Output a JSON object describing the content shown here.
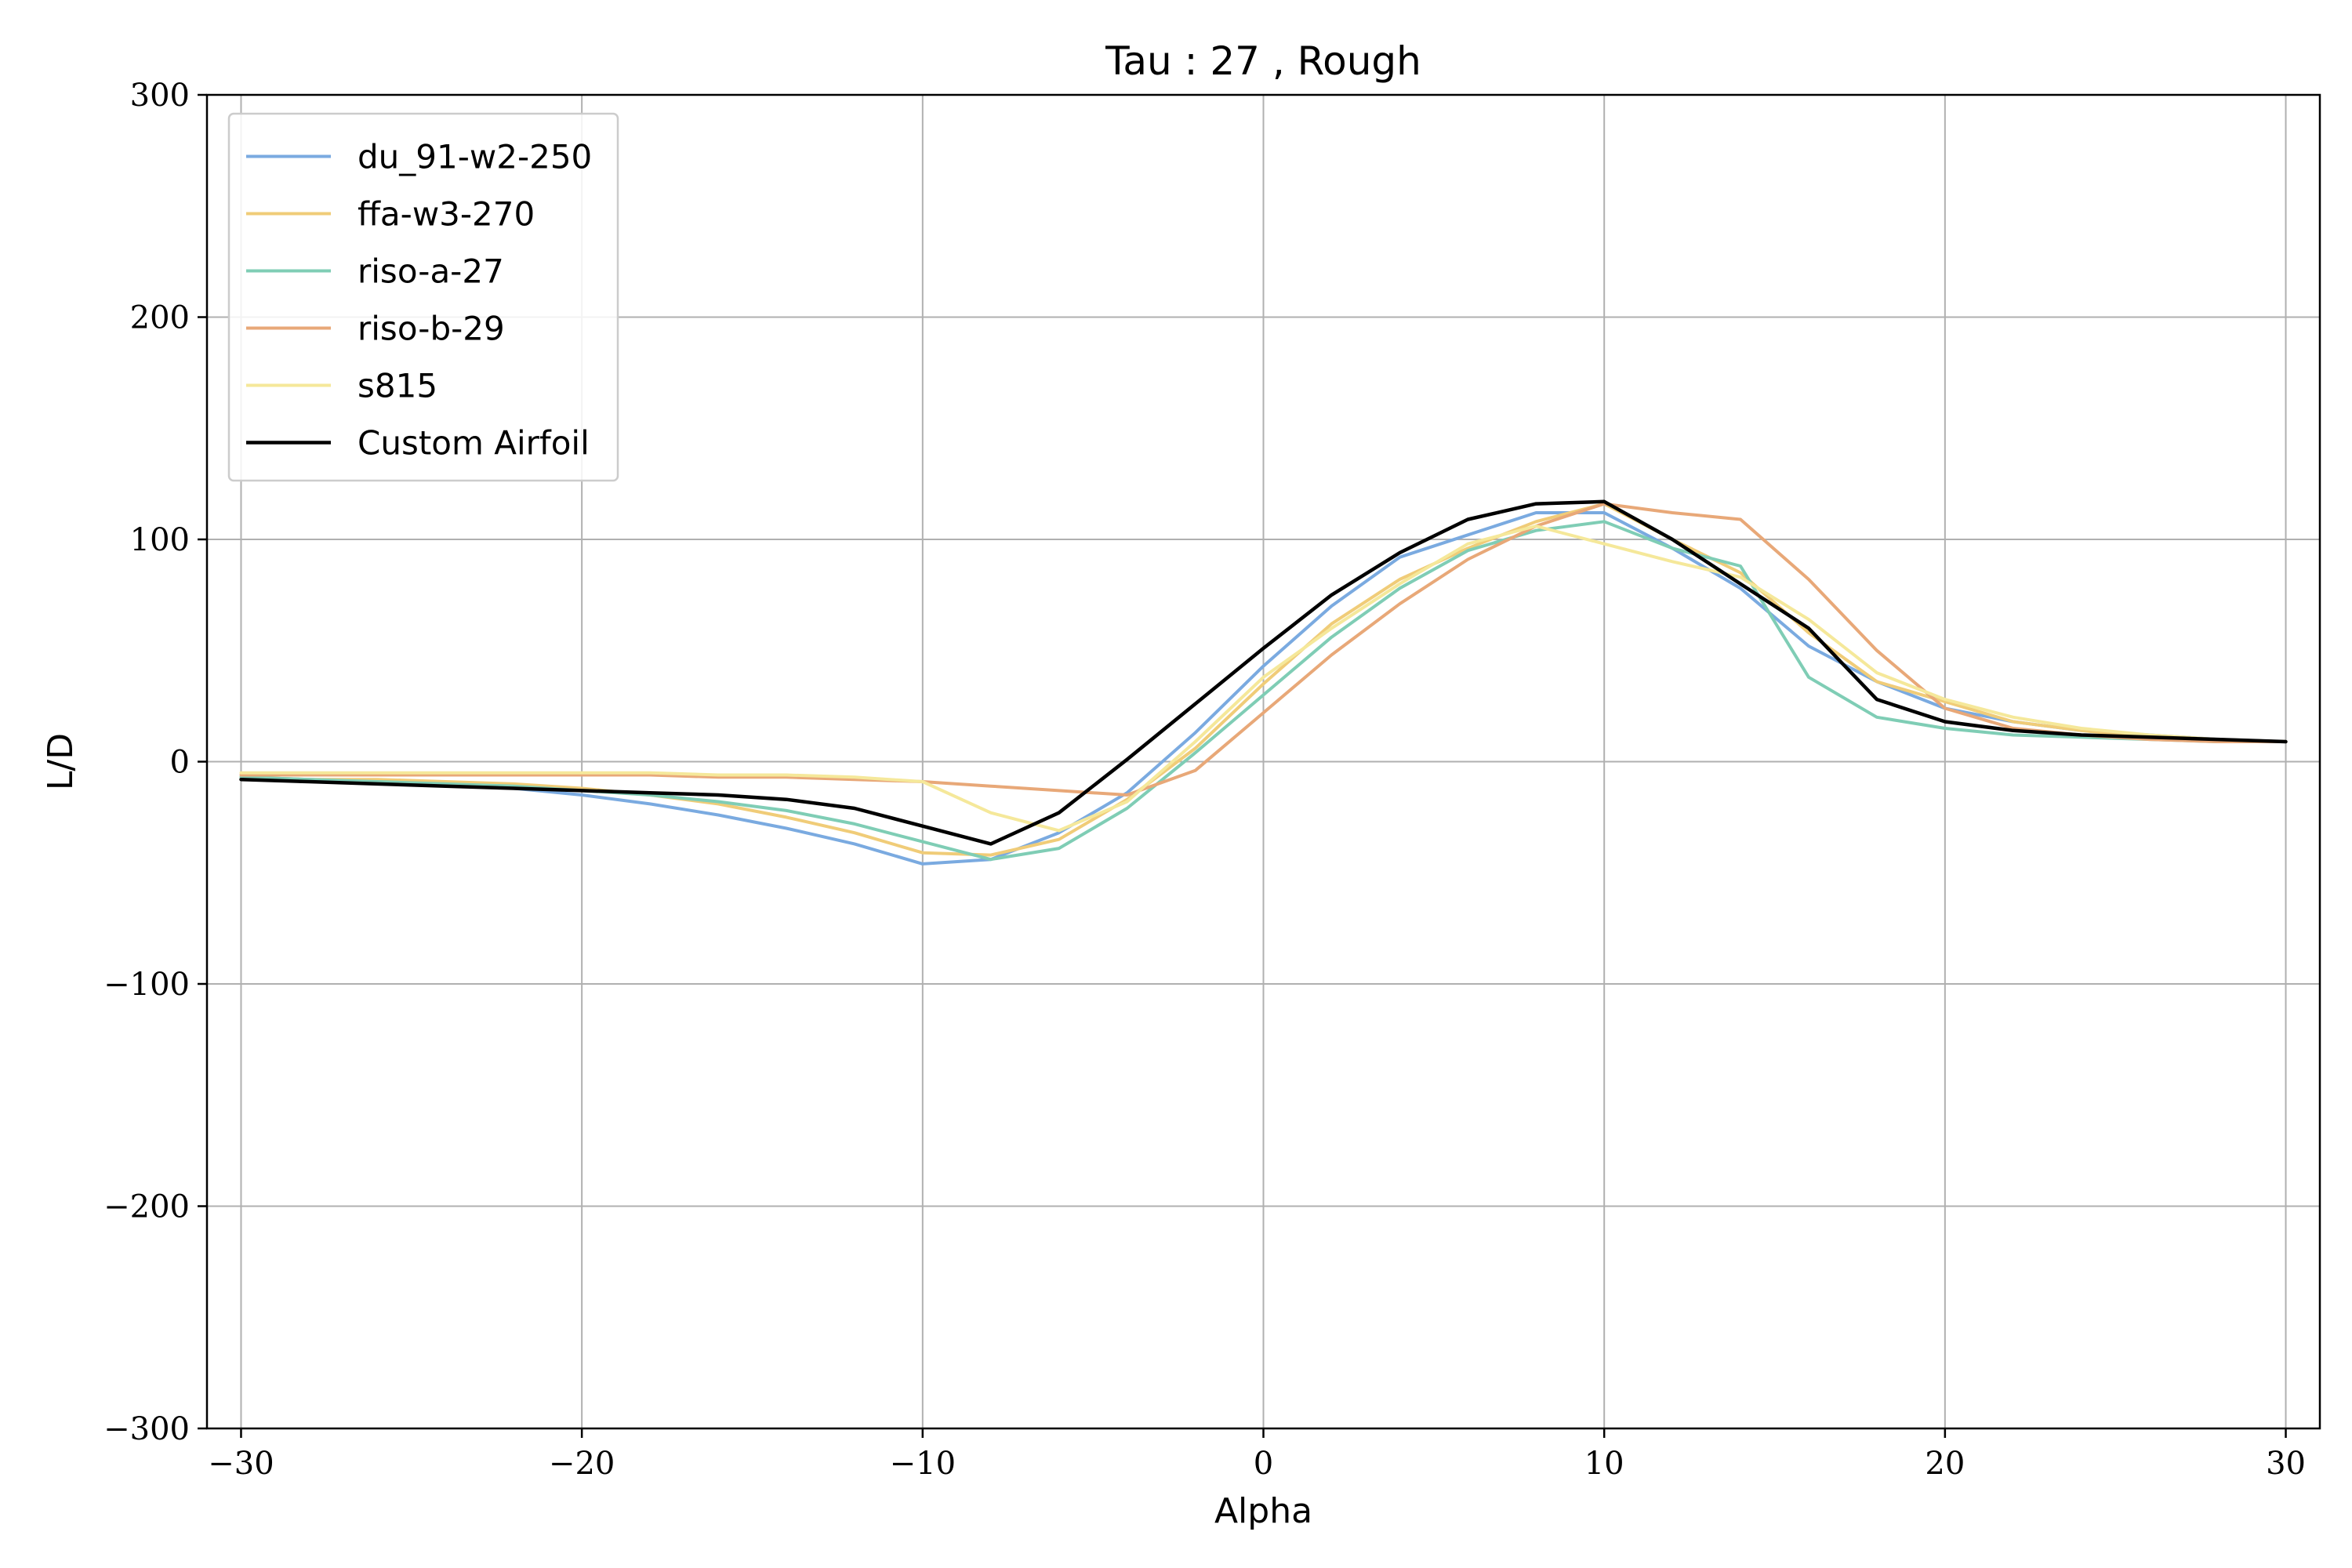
{
  "chart_data": {
    "type": "line",
    "title": "Tau : 27 , Rough",
    "xlabel": "Alpha",
    "ylabel": "L/D",
    "xlim": [
      -31,
      31
    ],
    "ylim": [
      -300,
      300
    ],
    "xticks": [
      -30,
      -20,
      -10,
      0,
      10,
      20,
      30
    ],
    "yticks": [
      -300,
      -200,
      -100,
      0,
      100,
      200,
      300
    ],
    "xtick_labels": [
      "−30",
      "−20",
      "−10",
      "0",
      "10",
      "20",
      "30"
    ],
    "ytick_labels": [
      "−300",
      "−200",
      "−100",
      "0",
      "100",
      "200",
      "300"
    ],
    "grid": true,
    "legend_position": "top-left",
    "x": [
      -30,
      -28,
      -26,
      -24,
      -22,
      -20,
      -18,
      -16,
      -14,
      -12,
      -10,
      -8,
      -6,
      -4,
      -2,
      0,
      2,
      4,
      6,
      8,
      10,
      12,
      14,
      16,
      18,
      20,
      22,
      24,
      26,
      28,
      30
    ],
    "series": [
      {
        "name": "du_91-w2-250",
        "color": "#7aaae0",
        "width": 4,
        "values": [
          -8,
          -8,
          -9,
          -10,
          -12,
          -15,
          -19,
          -24,
          -30,
          -37,
          -46,
          -44,
          -32,
          -14,
          13,
          43,
          70,
          92,
          102,
          112,
          112,
          96,
          78,
          52,
          36,
          24,
          18,
          14,
          12,
          10,
          9
        ]
      },
      {
        "name": "ffa-w3-270",
        "color": "#f0cc78",
        "width": 4,
        "values": [
          -7,
          -8,
          -8,
          -9,
          -10,
          -12,
          -15,
          -19,
          -25,
          -32,
          -41,
          -42,
          -35,
          -17,
          6,
          35,
          62,
          82,
          96,
          108,
          116,
          100,
          85,
          58,
          36,
          27,
          18,
          14,
          11,
          10,
          9
        ]
      },
      {
        "name": "riso-a-27",
        "color": "#7fcdb5",
        "width": 4,
        "values": [
          -7,
          -8,
          -9,
          -10,
          -11,
          -13,
          -15,
          -18,
          -22,
          -28,
          -36,
          -44,
          -39,
          -21,
          4,
          30,
          56,
          78,
          95,
          104,
          108,
          96,
          88,
          38,
          20,
          15,
          12,
          11,
          10,
          9,
          9
        ]
      },
      {
        "name": "riso-b-29",
        "color": "#e8a878",
        "width": 4,
        "values": [
          -6,
          -6,
          -6,
          -6,
          -6,
          -6,
          -6,
          -7,
          -7,
          -8,
          -9,
          -11,
          -13,
          -15,
          -4,
          22,
          48,
          71,
          91,
          106,
          116,
          112,
          109,
          82,
          50,
          24,
          15,
          12,
          10,
          9,
          9
        ]
      },
      {
        "name": "s815",
        "color": "#f5e89a",
        "width": 4,
        "values": [
          -5,
          -5,
          -5,
          -5,
          -5,
          -5,
          -5,
          -6,
          -6,
          -7,
          -9,
          -23,
          -31,
          -18,
          9,
          38,
          60,
          80,
          98,
          106,
          98,
          90,
          83,
          64,
          40,
          28,
          20,
          15,
          12,
          10,
          9
        ]
      },
      {
        "name": "Custom Airfoil",
        "color": "#000000",
        "width": 4.5,
        "values": [
          -8,
          -9,
          -10,
          -11,
          -12,
          -13,
          -14,
          -15,
          -17,
          -21,
          -29,
          -37,
          -23,
          1,
          26,
          51,
          75,
          94,
          109,
          116,
          117,
          100,
          80,
          60,
          28,
          18,
          14,
          12,
          11,
          10,
          9
        ]
      }
    ]
  }
}
